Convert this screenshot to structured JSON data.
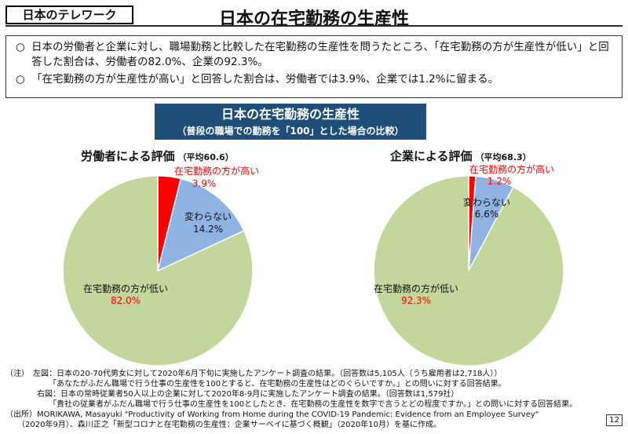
{
  "header": {
    "tag": "日本のテレワーク",
    "title": "日本の在宅勤務の生産性"
  },
  "summary": [
    {
      "bullet": "○",
      "text": "日本の労働者と企業に対し、職場勤務と比較した在宅勤務の生産性を問うたところ、「在宅勤務の方が生産性が低い」と回答した割合は、労働者の82.0%、企業の92.3%。"
    },
    {
      "bullet": "○",
      "text": "「在宅勤務の方が生産性が高い」と回答した割合は、労働者では3.9%、企業では1.2%に留まる。"
    }
  ],
  "banner": {
    "title": "日本の在宅勤務の生産性",
    "subtitle": "（普段の職場での勤務を「100」とした場合の比較）"
  },
  "chart_data": [
    {
      "type": "pie",
      "title": "労働者による評価",
      "subtitle": "（平均60.6）",
      "slices": [
        {
          "label": "在宅勤務の方が高い",
          "value": 3.9,
          "value_label": "3.9%",
          "color": "#ff0000",
          "label_color": "#ff0000",
          "value_color": "#ff0000"
        },
        {
          "label": "変わらない",
          "value": 14.2,
          "value_label": "14.2%",
          "color": "#8fb4e3",
          "label_color": "#111111",
          "value_color": "#111111"
        },
        {
          "label": "在宅勤務の方が低い",
          "value": 82.0,
          "value_label": "82.0%",
          "color": "#c3d69b",
          "label_color": "#111111",
          "value_color": "#ff0000"
        }
      ]
    },
    {
      "type": "pie",
      "title": "企業による評価",
      "subtitle": "（平均68.3）",
      "slices": [
        {
          "label": "在宅勤務の方が高い",
          "value": 1.2,
          "value_label": "1.2%",
          "color": "#ff0000",
          "label_color": "#ff0000",
          "value_color": "#ff0000"
        },
        {
          "label": "変わらない",
          "value": 6.6,
          "value_label": "6.6%",
          "color": "#8fb4e3",
          "label_color": "#111111",
          "value_color": "#111111"
        },
        {
          "label": "在宅勤務の方が低い",
          "value": 92.3,
          "value_label": "92.3%",
          "color": "#c3d69b",
          "label_color": "#111111",
          "value_color": "#ff0000"
        }
      ]
    }
  ],
  "notes": [
    "（注）　左図：日本の20-70代男女に対して2020年6月下旬に実施したアンケート調査の結果。（回答数は5,105人（うち雇用者は2,718人））",
    "　　　　　　「あなたがふだん職場で行う仕事の生産性を100とすると、在宅勤務の生産性はどのぐらいですか。」との問いに対する回答結果。",
    "　　　　右図：日本の常時従業者50人以上の企業に対して2020年8-9月に実施したアンケート調査の結果。（回答数は1,579社）",
    "　　　　　　「貴社の従業者がふだん職場で行う仕事の生産性を100としたとき、在宅勤務の生産性を数字で言うとどの程度ですか。」との問いに対する回答結果。",
    "（出所）MORIKAWA, Masayuki \"Productivity of Working from Home during the COVID-19 Pandemic: Evidence from an Employee Survey\"",
    "　　（2020年9月）、森川正之「新型コロナと在宅勤務の生産性：企業サーベイに基づく概観」（2020年10月）を基に作成。"
  ],
  "page_number": "12"
}
